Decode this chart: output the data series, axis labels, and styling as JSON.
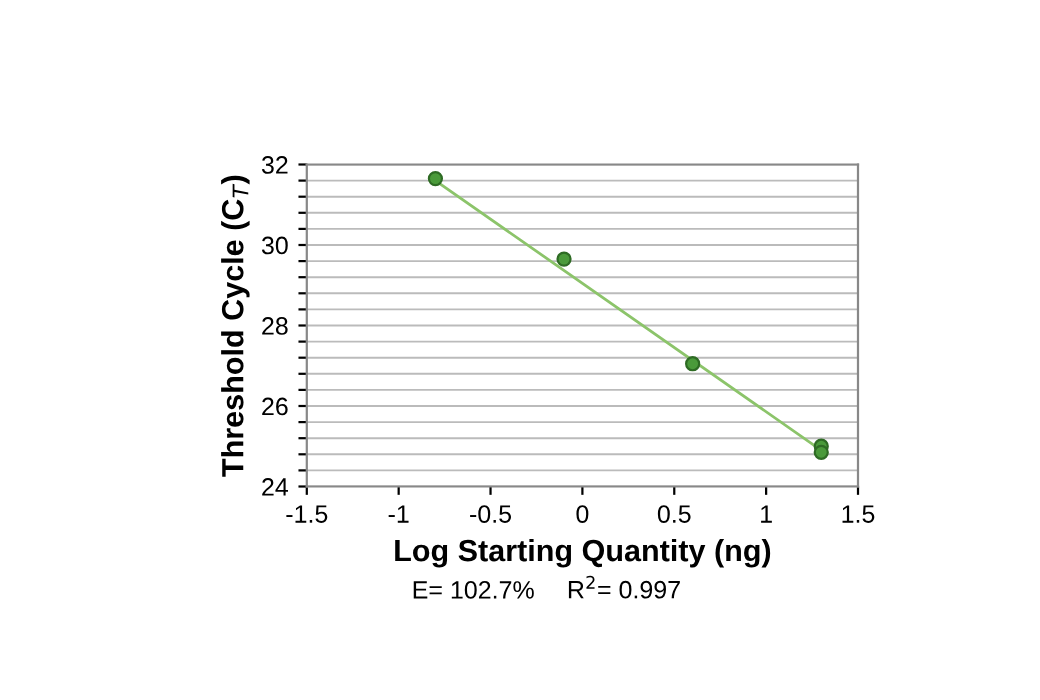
{
  "chart_data": {
    "type": "scatter",
    "xlabel": "Log Starting Quantity (ng)",
    "ylabel": "Threshold Cycle (C$_{T}$)",
    "annotations": [
      "E= 102.7%",
      "R$^{2}$= 0.997"
    ],
    "series": [
      {
        "color": "#4a9a3a",
        "x": [
          -0.8,
          -0.1,
          0.6,
          1.3,
          1.3
        ],
        "values": [
          31.65,
          29.65,
          27.05,
          25.0,
          24.85
        ],
        "marker": "circle"
      },
      {
        "type": "line",
        "color": "#8cc46a",
        "x": [
          -0.8,
          1.3
        ],
        "values": [
          31.6,
          24.9
        ],
        "marker": "none"
      }
    ],
    "xlim": [
      -1.5,
      1.5
    ],
    "xticks": [
      -1.5,
      -1,
      -0.5,
      0,
      0.5,
      1,
      1.5
    ],
    "ylim": [
      24,
      32
    ],
    "yticks": [
      24,
      {
        "value": 24.4,
        "label": null
      },
      {
        "value": 24.8,
        "label": null
      },
      {
        "value": 25.2,
        "label": null
      },
      {
        "value": 25.6,
        "label": null
      },
      26,
      {
        "value": 26.4,
        "label": null
      },
      {
        "value": 26.8,
        "label": null
      },
      {
        "value": 27.2,
        "label": null
      },
      {
        "value": 27.6,
        "label": null
      },
      28,
      {
        "value": 28.4,
        "label": null
      },
      {
        "value": 28.8,
        "label": null
      },
      {
        "value": 29.2,
        "label": null
      },
      {
        "value": 29.6,
        "label": null
      },
      30,
      {
        "value": 30.4,
        "label": null
      },
      {
        "value": 30.8,
        "label": null
      },
      {
        "value": 31.2,
        "label": null
      },
      {
        "value": 31.6,
        "label": null
      },
      32
    ],
    "grid": "y"
  }
}
